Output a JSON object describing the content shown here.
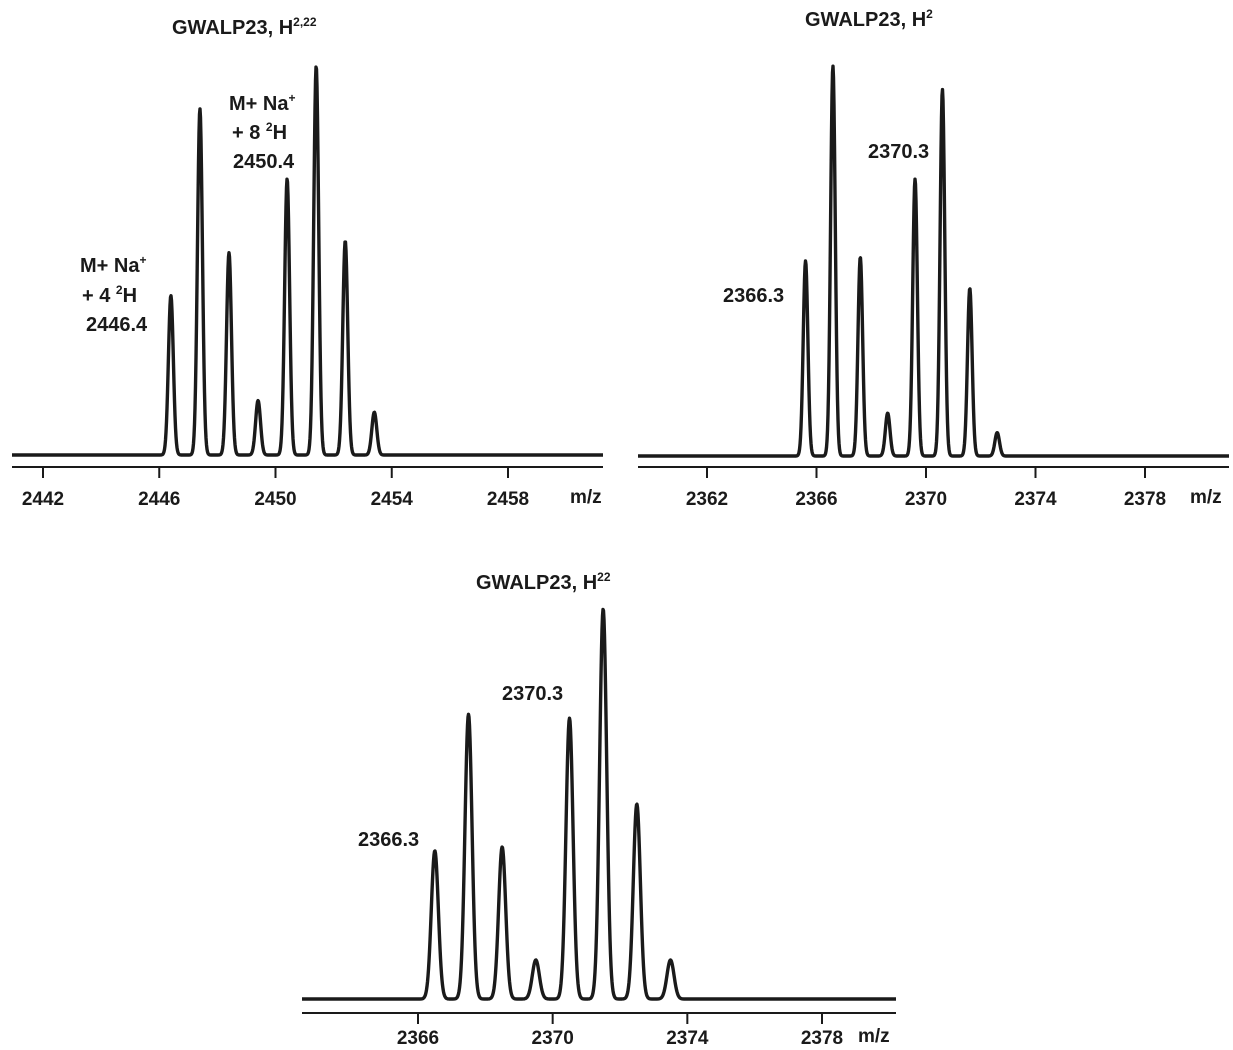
{
  "chart_data": [
    {
      "type": "line",
      "title": "GWALP23, H",
      "title_sup": "2,22",
      "xlabel": "m/z",
      "xlim": [
        2440,
        2464
      ],
      "ylim": [
        0,
        100
      ],
      "xticks": [
        2442,
        2446,
        2450,
        2454,
        2458
      ],
      "tick_labels": [
        "2442",
        "2446",
        "2450",
        "2454",
        "2458"
      ],
      "peaks": {
        "x": [
          2446.4,
          2447.4,
          2448.4,
          2449.4,
          2450.4,
          2451.4,
          2452.4,
          2453.4
        ],
        "y": [
          41,
          89,
          52,
          14,
          71,
          100,
          55,
          11
        ]
      },
      "annotations": [
        {
          "lines": [
            "M+ Na",
            "+ 4 ",
            "H"
          ],
          "sup": [
            "+",
            "2"
          ],
          "value": "2446.4"
        },
        {
          "lines": [
            "M+ Na",
            "+ 8 ",
            "H"
          ],
          "sup": [
            "+",
            "2"
          ],
          "value": "2450.4"
        }
      ]
    },
    {
      "type": "line",
      "title": "GWALP23, H",
      "title_sup": "2",
      "xlabel": "m/z",
      "xlim": [
        2358,
        2381
      ],
      "ylim": [
        0,
        100
      ],
      "xticks": [
        2362,
        2366,
        2370,
        2374,
        2378
      ],
      "tick_labels": [
        "2362",
        "2366",
        "2370",
        "2374",
        "2378"
      ],
      "peaks": {
        "x": [
          2365.6,
          2366.6,
          2367.6,
          2368.6,
          2369.6,
          2370.6,
          2371.6,
          2372.6
        ],
        "y": [
          50,
          100,
          51,
          11,
          71,
          94,
          43,
          6
        ]
      },
      "annotations": [
        {
          "value": "2366.3"
        },
        {
          "value": "2370.3"
        }
      ]
    },
    {
      "type": "line",
      "title": "GWALP23, H",
      "title_sup": "22",
      "xlabel": "m/z",
      "xlim": [
        2362,
        2381
      ],
      "ylim": [
        0,
        100
      ],
      "xticks": [
        2366,
        2370,
        2374,
        2378
      ],
      "tick_labels": [
        "2366",
        "2370",
        "2374",
        "2378"
      ],
      "peaks": {
        "x": [
          2366.5,
          2367.5,
          2368.5,
          2369.5,
          2370.5,
          2371.5,
          2372.5,
          2373.5
        ],
        "y": [
          38,
          73,
          39,
          10,
          72,
          100,
          50,
          10
        ]
      },
      "annotations": [
        {
          "value": "2366.3"
        },
        {
          "value": "2370.3"
        }
      ]
    }
  ]
}
